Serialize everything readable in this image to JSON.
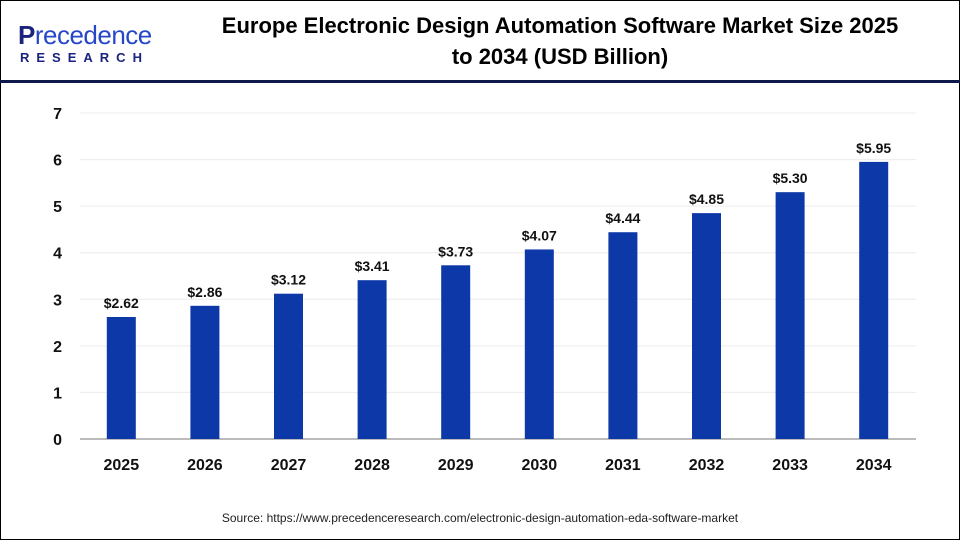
{
  "logo": {
    "brand_line1": "Precedence",
    "brand_line2": "RESEARCH"
  },
  "title_line1": "Europe Electronic Design Automation Software Market Size 2025",
  "title_line2": "to 2034 (USD Billion)",
  "source": "Source: https://www.precedenceresearch.com/electronic-design-automation-eda-software-market",
  "chart_data": {
    "type": "bar",
    "title": "Europe Electronic Design Automation Software Market Size 2025 to 2034 (USD Billion)",
    "categories": [
      "2025",
      "2026",
      "2027",
      "2028",
      "2029",
      "2030",
      "2031",
      "2032",
      "2033",
      "2034"
    ],
    "values": [
      2.62,
      2.86,
      3.12,
      3.41,
      3.73,
      4.07,
      4.44,
      4.85,
      5.3,
      5.95
    ],
    "data_labels": [
      "$2.62",
      "$2.86",
      "$3.12",
      "$3.41",
      "$3.73",
      "$4.07",
      "$4.44",
      "$4.85",
      "$5.30",
      "$5.95"
    ],
    "ylim": [
      0,
      7
    ],
    "yticks": [
      0,
      1,
      2,
      3,
      4,
      5,
      6,
      7
    ],
    "grid": true,
    "bar_color": "#0d38a8",
    "xlabel": "",
    "ylabel": ""
  }
}
